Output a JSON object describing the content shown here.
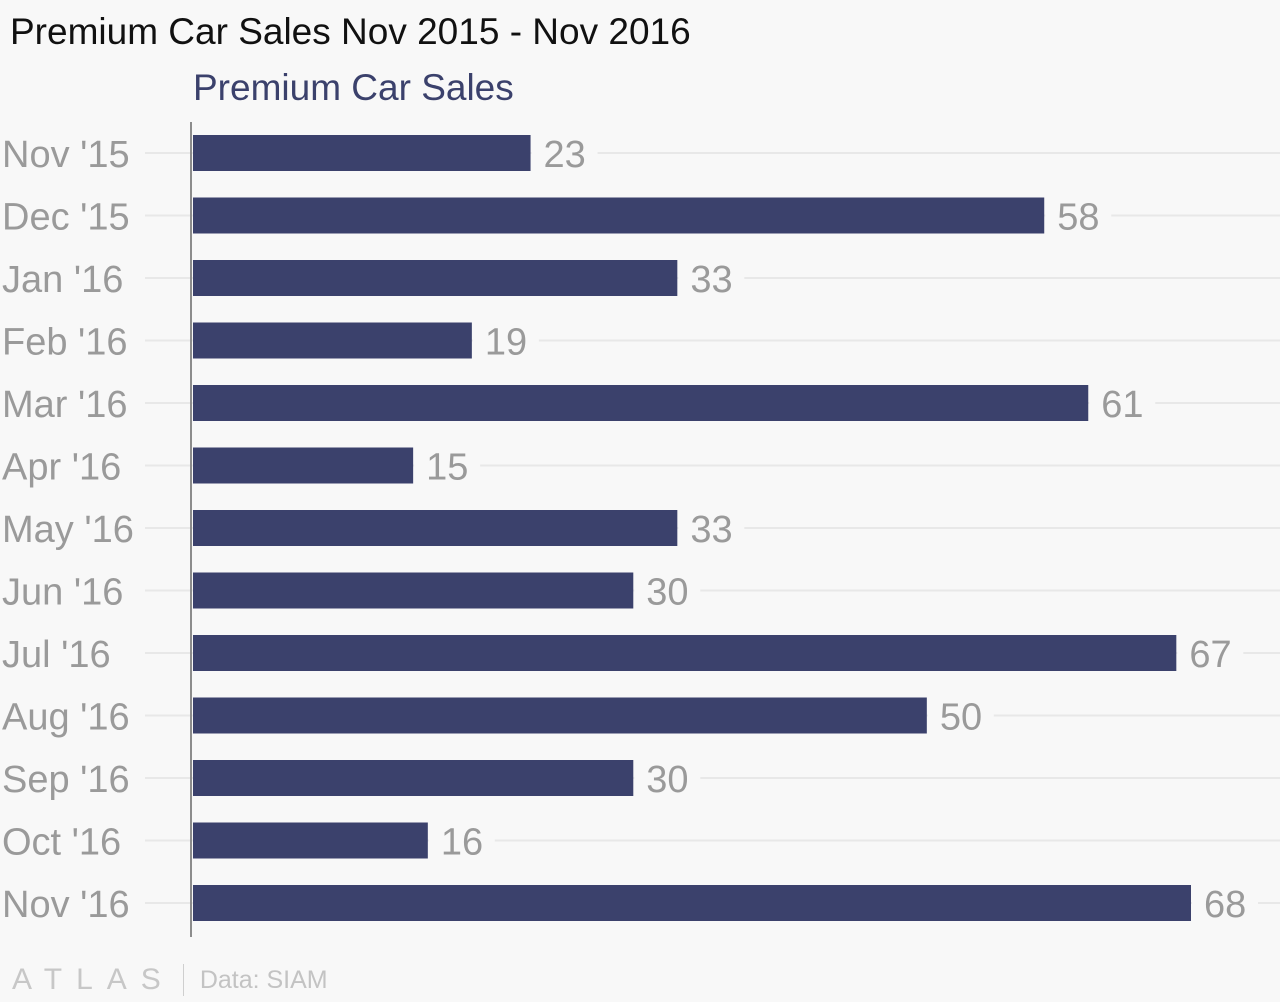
{
  "title": "Premium Car Sales Nov 2015 - Nov 2016",
  "colors": {
    "bar": "#3b416c",
    "series_label": "#3b416c",
    "tick_label": "#9a9a9a",
    "value_label": "#9a9a9a",
    "gridline": "#e8e8e8",
    "axis": "#8c8c8c",
    "background": "#f8f8f8"
  },
  "chart_data": {
    "type": "bar",
    "orientation": "horizontal",
    "categories": [
      "Nov '15",
      "Dec '15",
      "Jan '16",
      "Feb '16",
      "Mar '16",
      "Apr '16",
      "May '16",
      "Jun '16",
      "Jul '16",
      "Aug '16",
      "Sep '16",
      "Oct '16",
      "Nov '16"
    ],
    "series": [
      {
        "name": "Premium Car Sales",
        "values": [
          23,
          58,
          33,
          19,
          61,
          15,
          33,
          30,
          67,
          50,
          30,
          16,
          68
        ]
      }
    ],
    "xlim": [
      0,
      68
    ],
    "data_labels": true,
    "grid": true,
    "legend": "top-left"
  },
  "footer": {
    "logo": "ATLAS",
    "source": "Data: SIAM"
  }
}
